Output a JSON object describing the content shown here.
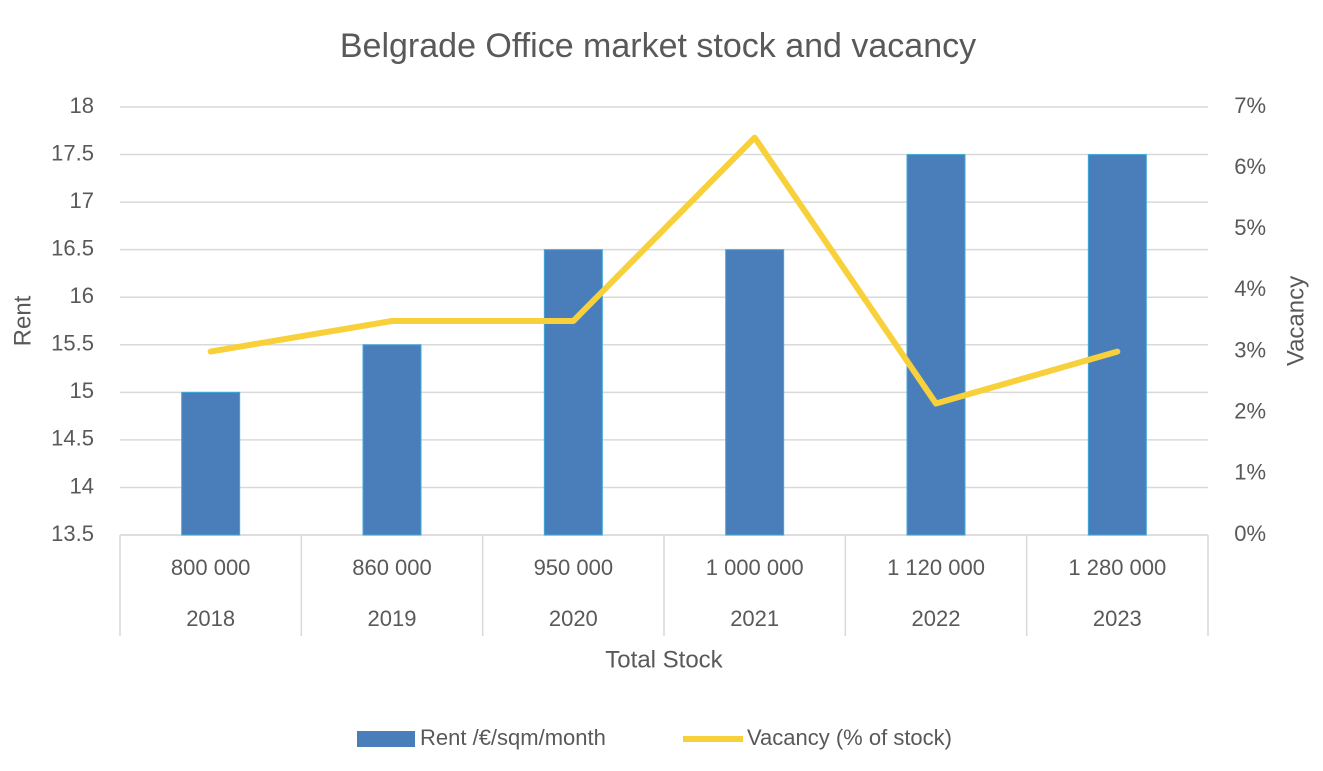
{
  "chart_data": {
    "type": "bar",
    "title": "Belgrade Office market stock and vacancy",
    "categories": [
      "2018",
      "2019",
      "2020",
      "2021",
      "2022",
      "2023"
    ],
    "stock_labels": [
      "800 000",
      "860 000",
      "950 000",
      "1 000 000",
      "1 120 000",
      "1 280 000"
    ],
    "x_label": "Total Stock",
    "y_label": "Rent",
    "y2_label": "Vacancy",
    "series": [
      {
        "name": "Rent /€/sqm/month",
        "type": "bar",
        "color": "#4a7ebb",
        "values": [
          15,
          15.5,
          16.5,
          16.5,
          17.5,
          17.5
        ]
      },
      {
        "name": "Vacancy (% of stock)",
        "type": "line",
        "axis": "y2",
        "color": "#f7d03a",
        "values": [
          3,
          3.5,
          3.5,
          6.5,
          2.15,
          3
        ]
      }
    ],
    "ylim": [
      13.5,
      18
    ],
    "yticks": [
      13.5,
      14,
      14.5,
      15,
      15.5,
      16,
      16.5,
      17,
      17.5,
      18
    ],
    "y2lim": [
      0,
      7
    ],
    "y2ticks": [
      {
        "value": 0,
        "label": "0%"
      },
      {
        "value": 1,
        "label": "1%"
      },
      {
        "value": 2,
        "label": "2%"
      },
      {
        "value": 3,
        "label": "3%"
      },
      {
        "value": 4,
        "label": "4%"
      },
      {
        "value": 5,
        "label": "5%"
      },
      {
        "value": 6,
        "label": "6%"
      },
      {
        "value": 7,
        "label": "7%"
      }
    ],
    "grid": true,
    "legend": "bottom"
  }
}
